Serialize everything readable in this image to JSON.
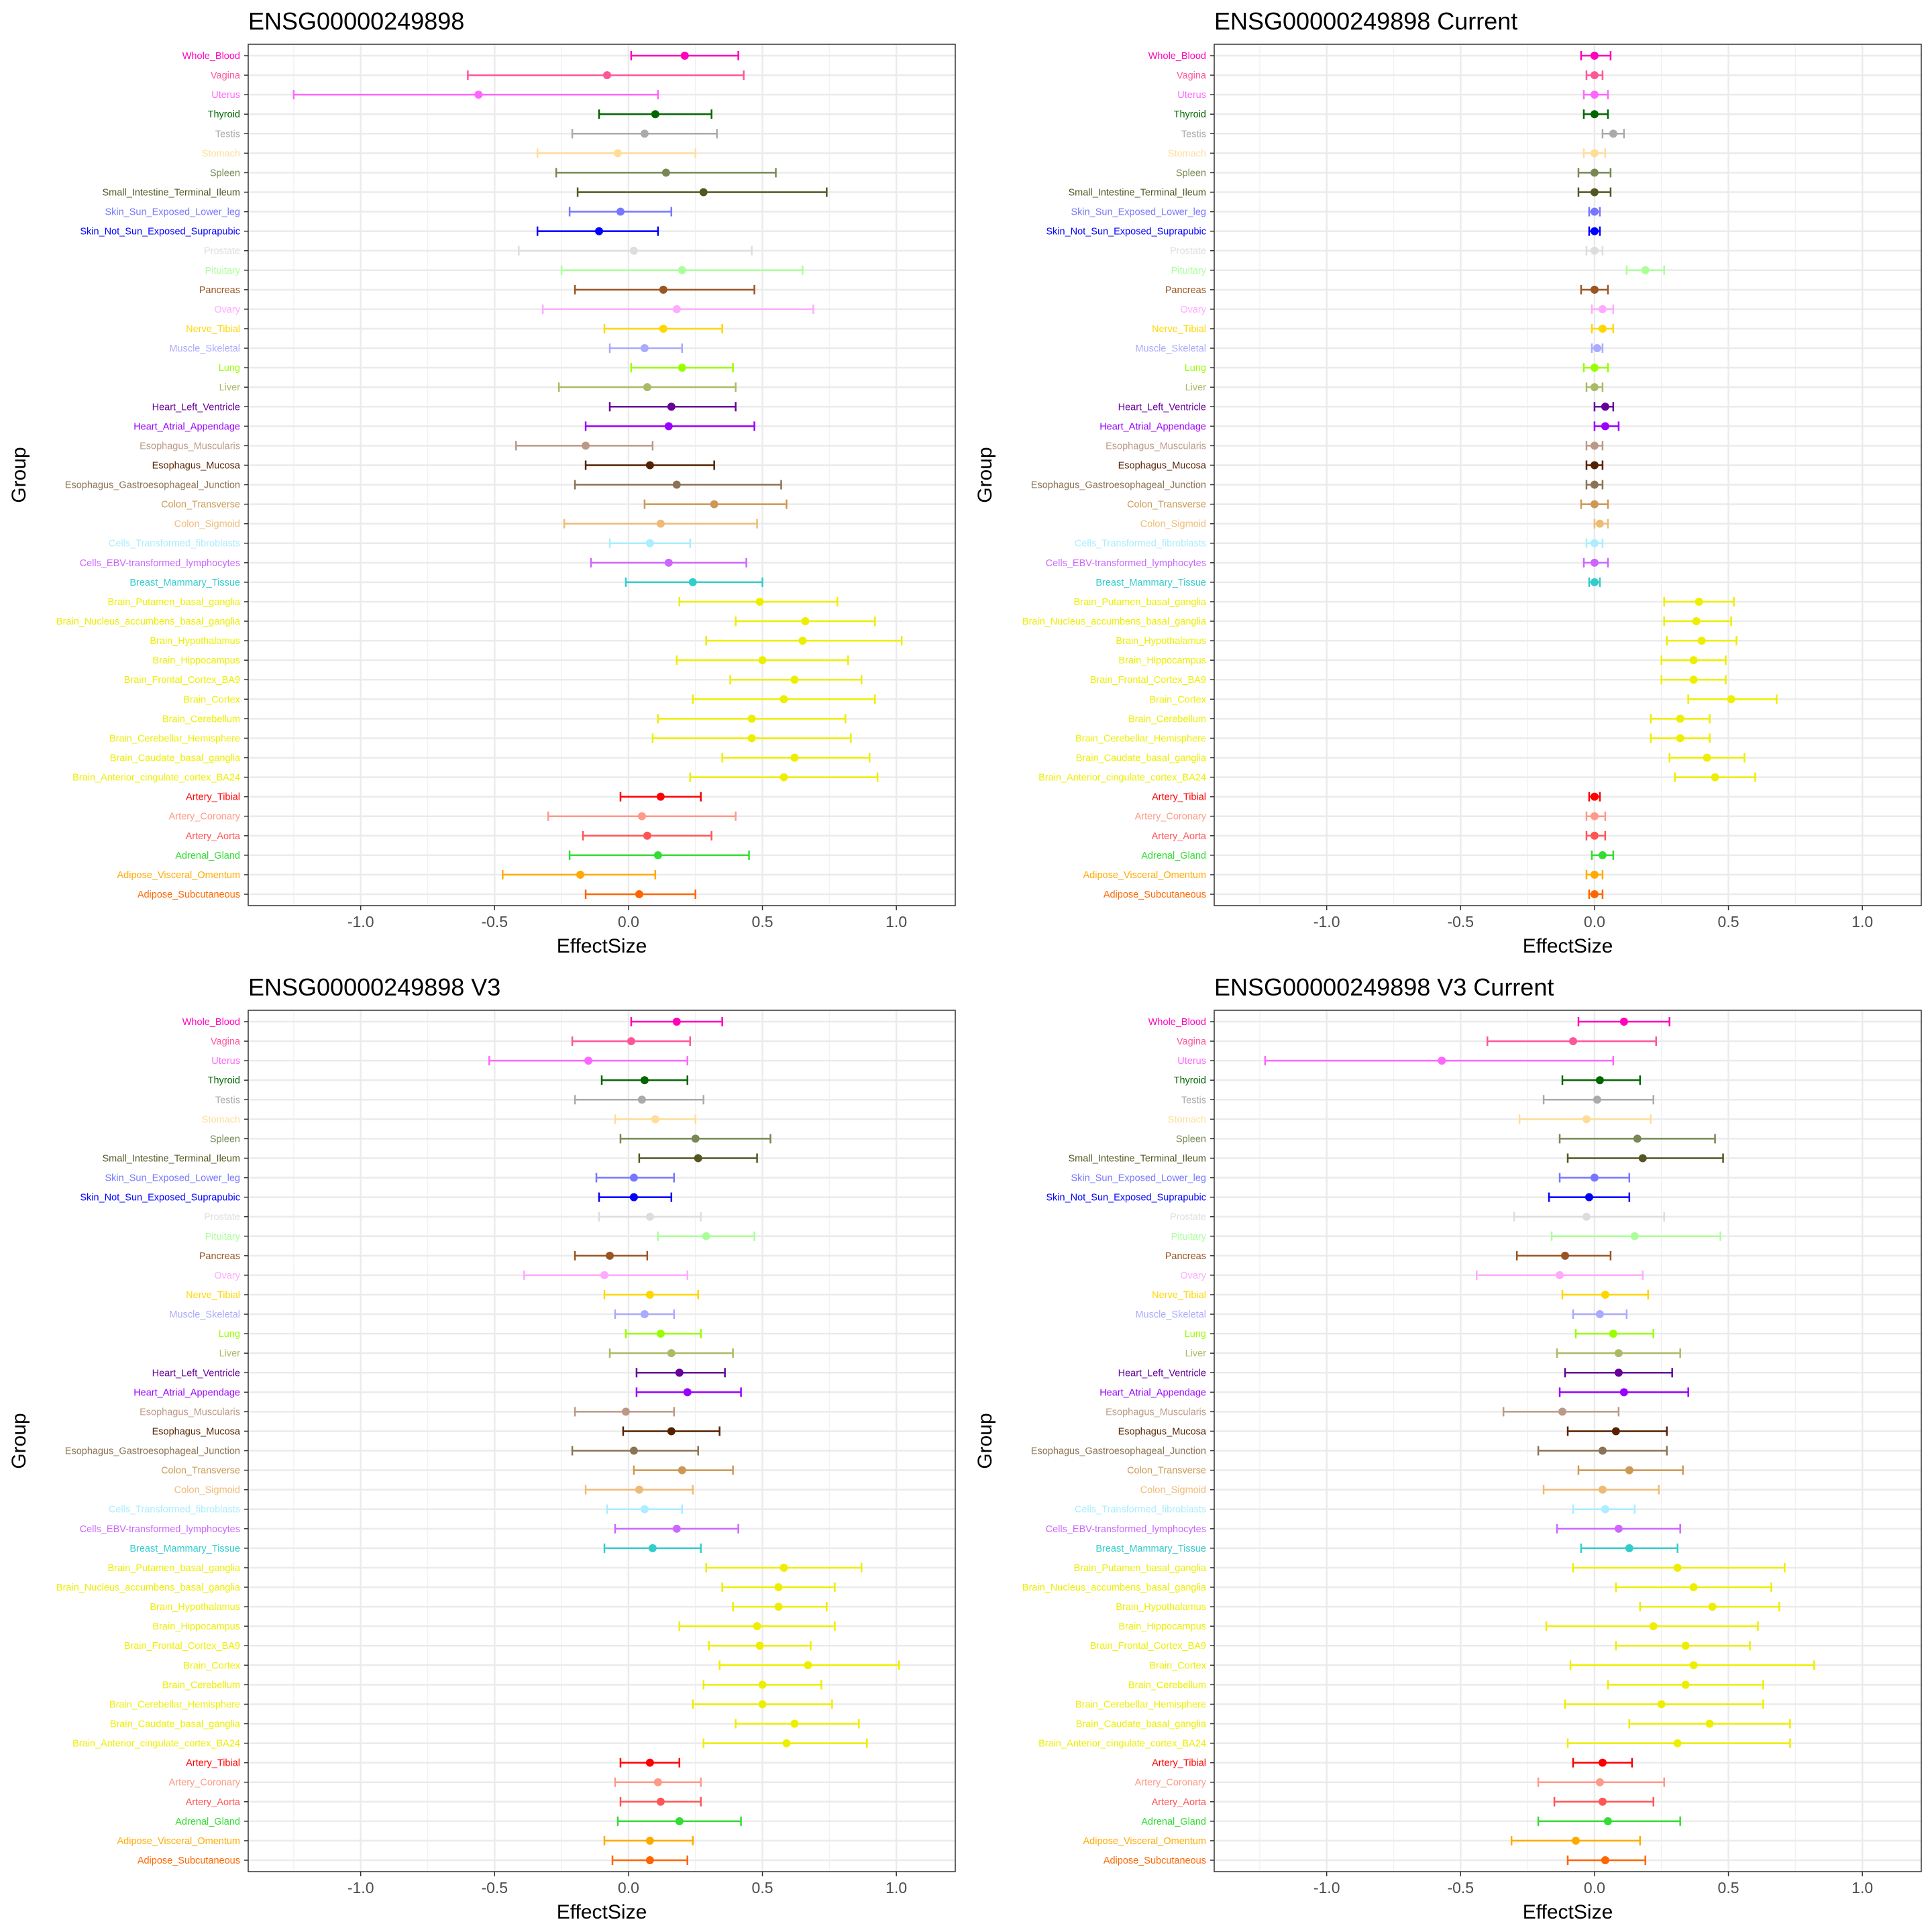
{
  "colors": {
    "Whole_Blood": "#FF00BB",
    "Vagina": "#FF5599",
    "Uterus": "#FF66FF",
    "Thyroid": "#006600",
    "Testis": "#AAAAAA",
    "Stomach": "#FFDD99",
    "Spleen": "#778855",
    "Small_Intestine_Terminal_Ileum": "#555522",
    "Skin_Sun_Exposed_Lower_leg": "#7777FF",
    "Skin_Not_Sun_Exposed_Suprapubic": "#0000FF",
    "Prostate": "#DDDDDD",
    "Pituitary": "#AAFF99",
    "Pancreas": "#995522",
    "Ovary": "#FFAAFF",
    "Nerve_Tibial": "#FFD700",
    "Muscle_Skeletal": "#AAAAFF",
    "Lung": "#99FF00",
    "Liver": "#AABB66",
    "Heart_Left_Ventricle": "#660099",
    "Heart_Atrial_Appendage": "#9900FF",
    "Esophagus_Muscularis": "#BB9988",
    "Esophagus_Mucosa": "#552200",
    "Esophagus_Gastroesophageal_Junction": "#8B7355",
    "Colon_Transverse": "#CC9955",
    "Colon_Sigmoid": "#EEBB77",
    "Cells_Transformed_fibroblasts": "#AAEEFF",
    "Cells_EBV-transformed_lymphocytes": "#CC66FF",
    "Breast_Mammary_Tissue": "#33CCCC",
    "Brain": "#EEEE00",
    "Artery_Tibial": "#FF0000",
    "Artery_Coronary": "#FF9988",
    "Artery_Aorta": "#FF5555",
    "Adrenal_Gland": "#33DD33",
    "Adipose_Visceral_Omentum": "#FFAA00",
    "Adipose_Subcutaneous": "#FF6600"
  },
  "chart_data": [
    {
      "type": "scatter",
      "title": "ENSG00000249898",
      "xlabel": "EffectSize",
      "ylabel": "Group",
      "xlim": [
        -1.42,
        1.22
      ],
      "xticks": [
        "-1.0",
        "-0.5",
        "0.0",
        "0.5",
        "1.0"
      ],
      "grid": true,
      "groups": [
        "Whole_Blood",
        "Vagina",
        "Uterus",
        "Thyroid",
        "Testis",
        "Stomach",
        "Spleen",
        "Small_Intestine_Terminal_Ileum",
        "Skin_Sun_Exposed_Lower_leg",
        "Skin_Not_Sun_Exposed_Suprapubic",
        "Prostate",
        "Pituitary",
        "Pancreas",
        "Ovary",
        "Nerve_Tibial",
        "Muscle_Skeletal",
        "Lung",
        "Liver",
        "Heart_Left_Ventricle",
        "Heart_Atrial_Appendage",
        "Esophagus_Muscularis",
        "Esophagus_Mucosa",
        "Esophagus_Gastroesophageal_Junction",
        "Colon_Transverse",
        "Colon_Sigmoid",
        "Cells_Transformed_fibroblasts",
        "Cells_EBV-transformed_lymphocytes",
        "Breast_Mammary_Tissue",
        "Brain_Putamen_basal_ganglia",
        "Brain_Nucleus_accumbens_basal_ganglia",
        "Brain_Hypothalamus",
        "Brain_Hippocampus",
        "Brain_Frontal_Cortex_BA9",
        "Brain_Cortex",
        "Brain_Cerebellum",
        "Brain_Cerebellar_Hemisphere",
        "Brain_Caudate_basal_ganglia",
        "Brain_Anterior_cingulate_cortex_BA24",
        "Artery_Tibial",
        "Artery_Coronary",
        "Artery_Aorta",
        "Adrenal_Gland",
        "Adipose_Visceral_Omentum",
        "Adipose_Subcutaneous"
      ],
      "estimate": [
        0.21,
        -0.08,
        -0.56,
        0.1,
        0.06,
        -0.04,
        0.14,
        0.28,
        -0.03,
        -0.11,
        0.02,
        0.2,
        0.13,
        0.18,
        0.13,
        0.06,
        0.2,
        0.07,
        0.16,
        0.15,
        -0.16,
        0.08,
        0.18,
        0.32,
        0.12,
        0.08,
        0.15,
        0.24,
        0.49,
        0.66,
        0.65,
        0.5,
        0.62,
        0.58,
        0.46,
        0.46,
        0.62,
        0.58,
        0.12,
        0.05,
        0.07,
        0.11,
        -0.18,
        0.04
      ],
      "lower": [
        0.01,
        -0.6,
        -1.25,
        -0.11,
        -0.21,
        -0.34,
        -0.27,
        -0.19,
        -0.22,
        -0.34,
        -0.41,
        -0.25,
        -0.2,
        -0.32,
        -0.09,
        -0.07,
        0.01,
        -0.26,
        -0.07,
        -0.16,
        -0.42,
        -0.16,
        -0.2,
        0.06,
        -0.24,
        -0.07,
        -0.14,
        -0.01,
        0.19,
        0.4,
        0.29,
        0.18,
        0.38,
        0.24,
        0.11,
        0.09,
        0.35,
        0.23,
        -0.03,
        -0.3,
        -0.17,
        -0.22,
        -0.47,
        -0.16
      ],
      "upper": [
        0.41,
        0.43,
        0.11,
        0.31,
        0.33,
        0.25,
        0.55,
        0.74,
        0.16,
        0.11,
        0.46,
        0.65,
        0.47,
        0.69,
        0.35,
        0.2,
        0.39,
        0.4,
        0.4,
        0.47,
        0.09,
        0.32,
        0.57,
        0.59,
        0.48,
        0.23,
        0.44,
        0.5,
        0.78,
        0.92,
        1.02,
        0.82,
        0.87,
        0.92,
        0.81,
        0.83,
        0.9,
        0.93,
        0.27,
        0.4,
        0.31,
        0.45,
        0.1,
        0.25
      ]
    },
    {
      "type": "scatter",
      "title": "ENSG00000249898 Current",
      "xlabel": "EffectSize",
      "ylabel": "Group",
      "xlim": [
        -1.42,
        1.22
      ],
      "xticks": [
        "-1.0",
        "-0.5",
        "0.0",
        "0.5",
        "1.0"
      ],
      "grid": true,
      "groups": [
        "Whole_Blood",
        "Vagina",
        "Uterus",
        "Thyroid",
        "Testis",
        "Stomach",
        "Spleen",
        "Small_Intestine_Terminal_Ileum",
        "Skin_Sun_Exposed_Lower_leg",
        "Skin_Not_Sun_Exposed_Suprapubic",
        "Prostate",
        "Pituitary",
        "Pancreas",
        "Ovary",
        "Nerve_Tibial",
        "Muscle_Skeletal",
        "Lung",
        "Liver",
        "Heart_Left_Ventricle",
        "Heart_Atrial_Appendage",
        "Esophagus_Muscularis",
        "Esophagus_Mucosa",
        "Esophagus_Gastroesophageal_Junction",
        "Colon_Transverse",
        "Colon_Sigmoid",
        "Cells_Transformed_fibroblasts",
        "Cells_EBV-transformed_lymphocytes",
        "Breast_Mammary_Tissue",
        "Brain_Putamen_basal_ganglia",
        "Brain_Nucleus_accumbens_basal_ganglia",
        "Brain_Hypothalamus",
        "Brain_Hippocampus",
        "Brain_Frontal_Cortex_BA9",
        "Brain_Cortex",
        "Brain_Cerebellum",
        "Brain_Cerebellar_Hemisphere",
        "Brain_Caudate_basal_ganglia",
        "Brain_Anterior_cingulate_cortex_BA24",
        "Artery_Tibial",
        "Artery_Coronary",
        "Artery_Aorta",
        "Adrenal_Gland",
        "Adipose_Visceral_Omentum",
        "Adipose_Subcutaneous"
      ],
      "estimate": [
        0.0,
        0.0,
        0.0,
        0.0,
        0.07,
        0.0,
        0.0,
        0.0,
        0.0,
        0.0,
        0.0,
        0.19,
        0.0,
        0.03,
        0.03,
        0.01,
        0.0,
        0.0,
        0.04,
        0.04,
        0.0,
        0.0,
        0.0,
        0.0,
        0.02,
        0.0,
        0.0,
        0.0,
        0.39,
        0.38,
        0.4,
        0.37,
        0.37,
        0.51,
        0.32,
        0.32,
        0.42,
        0.45,
        0.0,
        0.0,
        0.0,
        0.03,
        0.0,
        0.0
      ],
      "lower": [
        -0.05,
        -0.03,
        -0.04,
        -0.04,
        0.03,
        -0.04,
        -0.06,
        -0.06,
        -0.02,
        -0.02,
        -0.03,
        0.12,
        -0.05,
        -0.01,
        -0.01,
        -0.01,
        -0.04,
        -0.03,
        0.0,
        0.0,
        -0.03,
        -0.03,
        -0.03,
        -0.05,
        0.0,
        -0.03,
        -0.04,
        -0.02,
        0.26,
        0.26,
        0.27,
        0.25,
        0.25,
        0.35,
        0.21,
        0.21,
        0.28,
        0.3,
        -0.02,
        -0.03,
        -0.03,
        -0.01,
        -0.03,
        -0.02
      ],
      "upper": [
        0.06,
        0.03,
        0.05,
        0.05,
        0.11,
        0.04,
        0.06,
        0.06,
        0.02,
        0.02,
        0.03,
        0.26,
        0.05,
        0.07,
        0.07,
        0.03,
        0.05,
        0.03,
        0.07,
        0.09,
        0.03,
        0.03,
        0.03,
        0.05,
        0.05,
        0.03,
        0.05,
        0.02,
        0.52,
        0.51,
        0.53,
        0.49,
        0.49,
        0.68,
        0.43,
        0.43,
        0.56,
        0.6,
        0.02,
        0.04,
        0.04,
        0.07,
        0.03,
        0.03
      ]
    },
    {
      "type": "scatter",
      "title": "ENSG00000249898 V3",
      "xlabel": "EffectSize",
      "ylabel": "Group",
      "xlim": [
        -1.42,
        1.22
      ],
      "xticks": [
        "-1.0",
        "-0.5",
        "0.0",
        "0.5",
        "1.0"
      ],
      "grid": true,
      "groups": [
        "Whole_Blood",
        "Vagina",
        "Uterus",
        "Thyroid",
        "Testis",
        "Stomach",
        "Spleen",
        "Small_Intestine_Terminal_Ileum",
        "Skin_Sun_Exposed_Lower_leg",
        "Skin_Not_Sun_Exposed_Suprapubic",
        "Prostate",
        "Pituitary",
        "Pancreas",
        "Ovary",
        "Nerve_Tibial",
        "Muscle_Skeletal",
        "Lung",
        "Liver",
        "Heart_Left_Ventricle",
        "Heart_Atrial_Appendage",
        "Esophagus_Muscularis",
        "Esophagus_Mucosa",
        "Esophagus_Gastroesophageal_Junction",
        "Colon_Transverse",
        "Colon_Sigmoid",
        "Cells_Transformed_fibroblasts",
        "Cells_EBV-transformed_lymphocytes",
        "Breast_Mammary_Tissue",
        "Brain_Putamen_basal_ganglia",
        "Brain_Nucleus_accumbens_basal_ganglia",
        "Brain_Hypothalamus",
        "Brain_Hippocampus",
        "Brain_Frontal_Cortex_BA9",
        "Brain_Cortex",
        "Brain_Cerebellum",
        "Brain_Cerebellar_Hemisphere",
        "Brain_Caudate_basal_ganglia",
        "Brain_Anterior_cingulate_cortex_BA24",
        "Artery_Tibial",
        "Artery_Coronary",
        "Artery_Aorta",
        "Adrenal_Gland",
        "Adipose_Visceral_Omentum",
        "Adipose_Subcutaneous"
      ],
      "estimate": [
        0.18,
        0.01,
        -0.15,
        0.06,
        0.05,
        0.1,
        0.25,
        0.26,
        0.02,
        0.02,
        0.08,
        0.29,
        -0.07,
        -0.09,
        0.08,
        0.06,
        0.12,
        0.16,
        0.19,
        0.22,
        -0.01,
        0.16,
        0.02,
        0.2,
        0.04,
        0.06,
        0.18,
        0.09,
        0.58,
        0.56,
        0.56,
        0.48,
        0.49,
        0.67,
        0.5,
        0.5,
        0.62,
        0.59,
        0.08,
        0.11,
        0.12,
        0.19,
        0.08,
        0.08
      ],
      "lower": [
        0.01,
        -0.21,
        -0.52,
        -0.1,
        -0.2,
        -0.05,
        -0.03,
        0.04,
        -0.12,
        -0.11,
        -0.11,
        0.11,
        -0.2,
        -0.39,
        -0.09,
        -0.05,
        -0.01,
        -0.07,
        0.03,
        0.03,
        -0.2,
        -0.02,
        -0.21,
        0.02,
        -0.16,
        -0.08,
        -0.05,
        -0.09,
        0.29,
        0.35,
        0.39,
        0.19,
        0.3,
        0.34,
        0.28,
        0.24,
        0.4,
        0.28,
        -0.03,
        -0.05,
        -0.03,
        -0.04,
        -0.09,
        -0.06
      ],
      "upper": [
        0.35,
        0.23,
        0.22,
        0.22,
        0.28,
        0.25,
        0.53,
        0.48,
        0.17,
        0.16,
        0.27,
        0.47,
        0.07,
        0.22,
        0.26,
        0.17,
        0.27,
        0.39,
        0.36,
        0.42,
        0.17,
        0.34,
        0.26,
        0.39,
        0.24,
        0.2,
        0.41,
        0.27,
        0.87,
        0.77,
        0.74,
        0.77,
        0.68,
        1.01,
        0.72,
        0.76,
        0.86,
        0.89,
        0.19,
        0.27,
        0.27,
        0.42,
        0.24,
        0.22
      ]
    },
    {
      "type": "scatter",
      "title": "ENSG00000249898 V3 Current",
      "xlabel": "EffectSize",
      "ylabel": "Group",
      "xlim": [
        -1.42,
        1.22
      ],
      "xticks": [
        "-1.0",
        "-0.5",
        "0.0",
        "0.5",
        "1.0"
      ],
      "grid": true,
      "groups": [
        "Whole_Blood",
        "Vagina",
        "Uterus",
        "Thyroid",
        "Testis",
        "Stomach",
        "Spleen",
        "Small_Intestine_Terminal_Ileum",
        "Skin_Sun_Exposed_Lower_leg",
        "Skin_Not_Sun_Exposed_Suprapubic",
        "Prostate",
        "Pituitary",
        "Pancreas",
        "Ovary",
        "Nerve_Tibial",
        "Muscle_Skeletal",
        "Lung",
        "Liver",
        "Heart_Left_Ventricle",
        "Heart_Atrial_Appendage",
        "Esophagus_Muscularis",
        "Esophagus_Mucosa",
        "Esophagus_Gastroesophageal_Junction",
        "Colon_Transverse",
        "Colon_Sigmoid",
        "Cells_Transformed_fibroblasts",
        "Cells_EBV-transformed_lymphocytes",
        "Breast_Mammary_Tissue",
        "Brain_Putamen_basal_ganglia",
        "Brain_Nucleus_accumbens_basal_ganglia",
        "Brain_Hypothalamus",
        "Brain_Hippocampus",
        "Brain_Frontal_Cortex_BA9",
        "Brain_Cortex",
        "Brain_Cerebellum",
        "Brain_Cerebellar_Hemisphere",
        "Brain_Caudate_basal_ganglia",
        "Brain_Anterior_cingulate_cortex_BA24",
        "Artery_Tibial",
        "Artery_Coronary",
        "Artery_Aorta",
        "Adrenal_Gland",
        "Adipose_Visceral_Omentum",
        "Adipose_Subcutaneous"
      ],
      "estimate": [
        0.11,
        -0.08,
        -0.57,
        0.02,
        0.01,
        -0.03,
        0.16,
        0.18,
        0.0,
        -0.02,
        -0.03,
        0.15,
        -0.11,
        -0.13,
        0.04,
        0.02,
        0.07,
        0.09,
        0.09,
        0.11,
        -0.12,
        0.08,
        0.03,
        0.13,
        0.03,
        0.04,
        0.09,
        0.13,
        0.31,
        0.37,
        0.44,
        0.22,
        0.34,
        0.37,
        0.34,
        0.25,
        0.43,
        0.31,
        0.03,
        0.02,
        0.03,
        0.05,
        -0.07,
        0.04
      ],
      "lower": [
        -0.06,
        -0.4,
        -1.23,
        -0.12,
        -0.19,
        -0.28,
        -0.13,
        -0.1,
        -0.13,
        -0.17,
        -0.3,
        -0.16,
        -0.29,
        -0.44,
        -0.12,
        -0.08,
        -0.07,
        -0.14,
        -0.11,
        -0.13,
        -0.34,
        -0.1,
        -0.21,
        -0.06,
        -0.19,
        -0.08,
        -0.14,
        -0.05,
        -0.08,
        0.08,
        0.17,
        -0.18,
        0.08,
        -0.09,
        0.05,
        -0.11,
        0.13,
        -0.1,
        -0.08,
        -0.21,
        -0.15,
        -0.21,
        -0.31,
        -0.1
      ],
      "upper": [
        0.28,
        0.23,
        0.07,
        0.17,
        0.22,
        0.21,
        0.45,
        0.48,
        0.13,
        0.13,
        0.26,
        0.47,
        0.06,
        0.18,
        0.2,
        0.12,
        0.22,
        0.32,
        0.29,
        0.35,
        0.09,
        0.27,
        0.27,
        0.33,
        0.24,
        0.15,
        0.32,
        0.31,
        0.71,
        0.66,
        0.69,
        0.61,
        0.58,
        0.82,
        0.63,
        0.63,
        0.73,
        0.73,
        0.14,
        0.26,
        0.22,
        0.32,
        0.17,
        0.19
      ]
    }
  ]
}
